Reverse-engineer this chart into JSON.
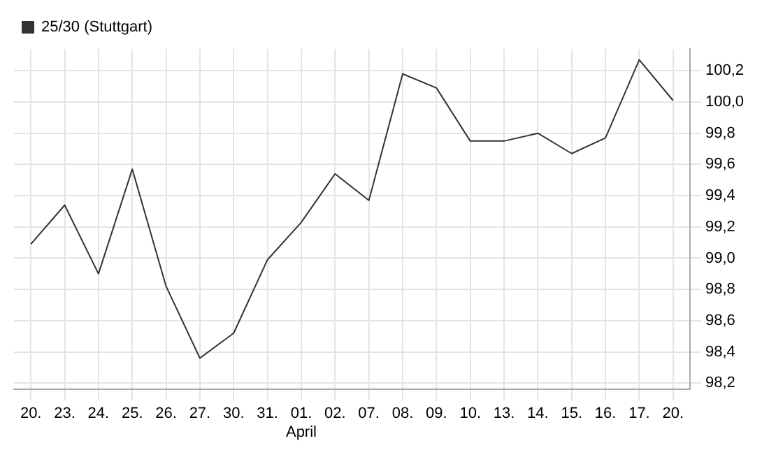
{
  "chart_data": {
    "type": "line",
    "categories": [
      "20.",
      "23.",
      "24.",
      "25.",
      "26.",
      "27.",
      "30.",
      "31.",
      "01.\nApril",
      "02.",
      "07.",
      "08.",
      "09.",
      "10.",
      "13.",
      "14.",
      "15.",
      "16.",
      "17.",
      "20."
    ],
    "series": [
      {
        "name": "25/30 (Stuttgart)",
        "color": "#333333",
        "values": [
          99.09,
          99.34,
          98.9,
          99.57,
          98.82,
          98.36,
          98.52,
          98.99,
          99.23,
          99.54,
          99.37,
          100.18,
          100.09,
          99.75,
          99.75,
          99.8,
          99.67,
          99.77,
          100.27,
          100.01
        ]
      }
    ],
    "ylim": [
      98.16,
      100.34
    ],
    "yticks": [
      {
        "value": 98.2,
        "label": "98,2"
      },
      {
        "value": 98.4,
        "label": "98,4"
      },
      {
        "value": 98.6,
        "label": "98,6"
      },
      {
        "value": 98.8,
        "label": "98,8"
      },
      {
        "value": 99.0,
        "label": "99,0"
      },
      {
        "value": 99.2,
        "label": "99,2"
      },
      {
        "value": 99.4,
        "label": "99,4"
      },
      {
        "value": 99.6,
        "label": "99,6"
      },
      {
        "value": 99.8,
        "label": "99,8"
      },
      {
        "value": 100.0,
        "label": "100,0"
      },
      {
        "value": 100.2,
        "label": "100,2"
      }
    ],
    "grid": true,
    "legend": "top left",
    "marker": "none",
    "line_style": "solid"
  }
}
